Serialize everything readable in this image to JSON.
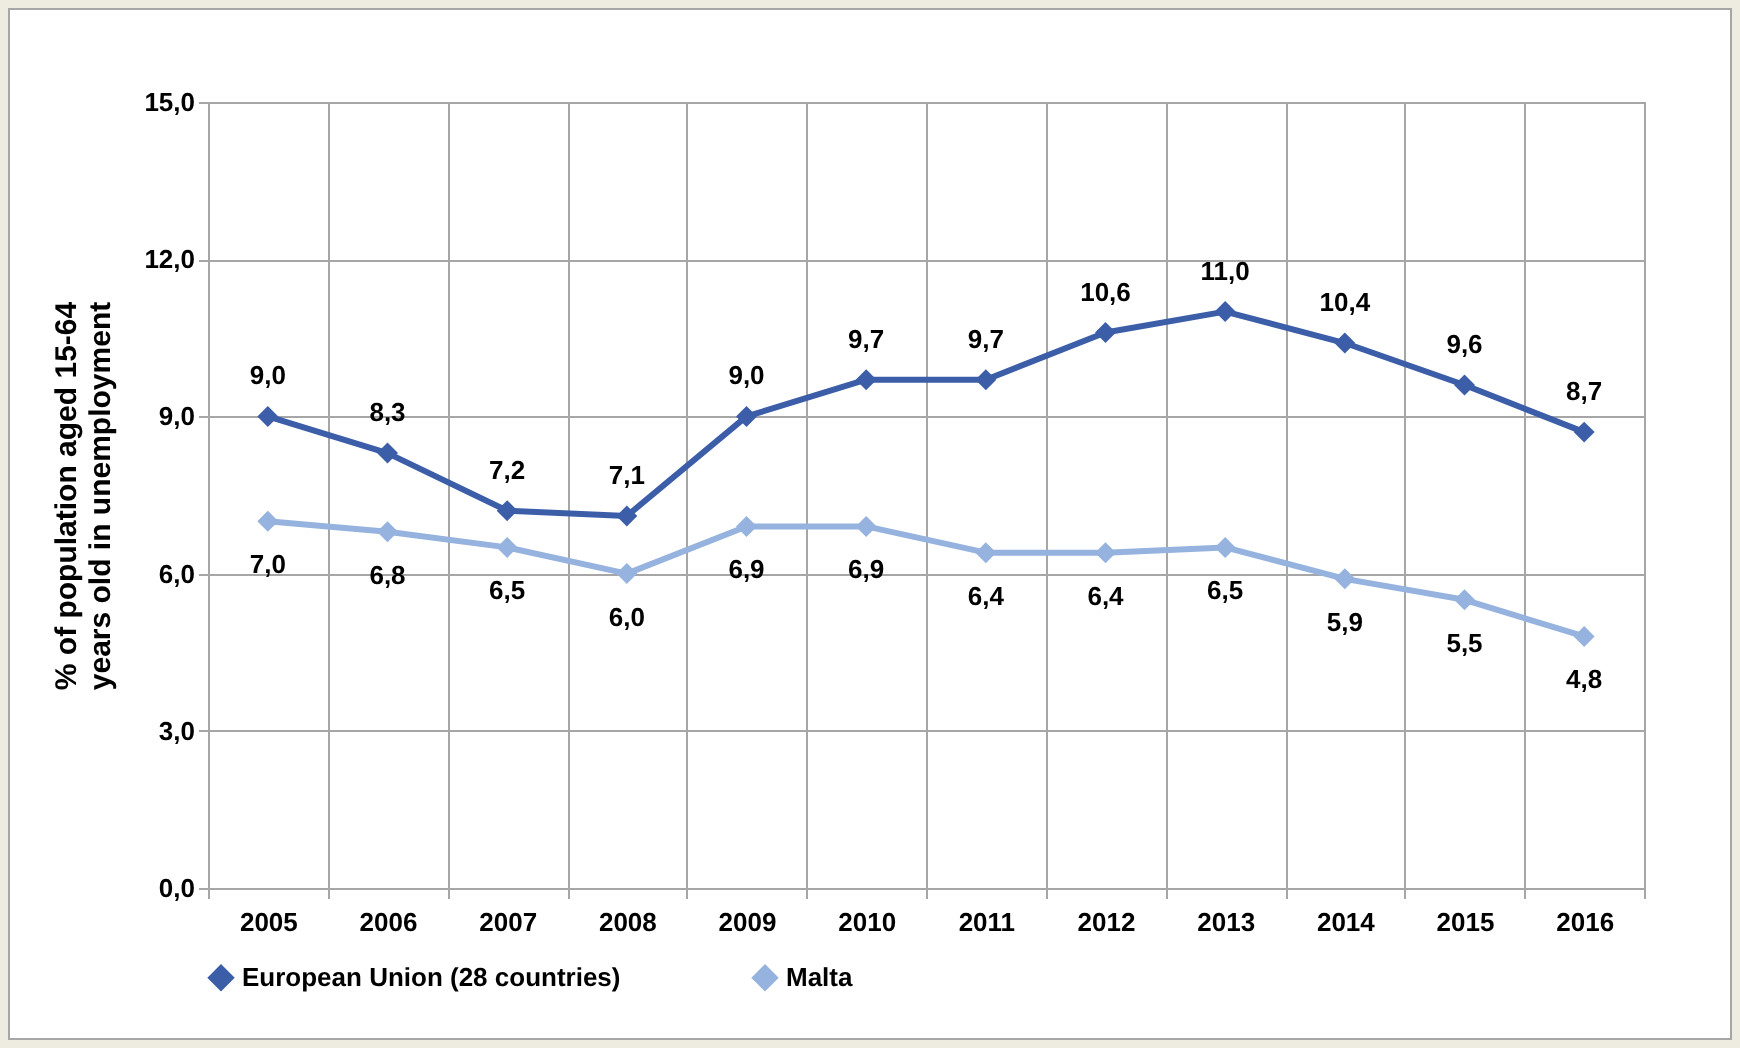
{
  "chart_data": {
    "type": "line",
    "ylabel": "% of population aged 15-64 years old in unemployment",
    "categories": [
      "2005",
      "2006",
      "2007",
      "2008",
      "2009",
      "2010",
      "2011",
      "2012",
      "2013",
      "2014",
      "2015",
      "2016"
    ],
    "series": [
      {
        "name": "European Union (28 countries)",
        "color": "#3c5ea8",
        "values": [
          9.0,
          8.3,
          7.2,
          7.1,
          9.0,
          9.7,
          9.7,
          10.6,
          11.0,
          10.4,
          9.6,
          8.7
        ],
        "value_labels": [
          "9,0",
          "8,3",
          "7,2",
          "7,1",
          "9,0",
          "9,7",
          "9,7",
          "10,6",
          "11,0",
          "10,4",
          "9,6",
          "8,7"
        ]
      },
      {
        "name": "Malta",
        "color": "#95b3de",
        "values": [
          7.0,
          6.8,
          6.5,
          6.0,
          6.9,
          6.9,
          6.4,
          6.4,
          6.5,
          5.9,
          5.5,
          4.8
        ],
        "value_labels": [
          "7,0",
          "6,8",
          "6,5",
          "6,0",
          "6,9",
          "6,9",
          "6,4",
          "6,4",
          "6,5",
          "5,9",
          "5,5",
          "4,8"
        ]
      }
    ],
    "ylim": [
      0,
      15
    ],
    "yticks": [
      {
        "value": 0,
        "label": "0,0"
      },
      {
        "value": 3,
        "label": "3,0"
      },
      {
        "value": 6,
        "label": "6,0"
      },
      {
        "value": 9,
        "label": "9,0"
      },
      {
        "value": 12,
        "label": "12,0"
      },
      {
        "value": 15,
        "label": "15,0"
      }
    ],
    "grid": true,
    "legend": "bottom",
    "marker": "diamond",
    "line_style": "solid"
  }
}
